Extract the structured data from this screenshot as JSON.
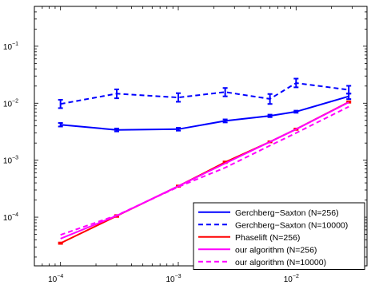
{
  "chart_data": {
    "type": "line",
    "x_scale": "log",
    "y_scale": "log",
    "xlim": [
      6e-05,
      0.04
    ],
    "ylim": [
      1.4e-05,
      0.5
    ],
    "x_ticks": [
      {
        "value": 0.0001,
        "base": "10",
        "exp": "−4"
      },
      {
        "value": 0.001,
        "base": "10",
        "exp": "−3"
      },
      {
        "value": 0.01,
        "base": "10",
        "exp": "−2"
      }
    ],
    "y_ticks": [
      {
        "value": 0.0001,
        "base": "10",
        "exp": "−4"
      },
      {
        "value": 0.001,
        "base": "10",
        "exp": "−3"
      },
      {
        "value": 0.01,
        "base": "10",
        "exp": "−2"
      },
      {
        "value": 0.1,
        "base": "10",
        "exp": "−1"
      }
    ],
    "grid": false,
    "legend_position": "bottom-right",
    "series": [
      {
        "name": "Gerchberg−Saxton (N=256)",
        "color": "#0000ff",
        "dash": "solid",
        "x": [
          0.0001,
          0.0003,
          0.001,
          0.0025,
          0.006,
          0.01,
          0.028
        ],
        "y": [
          0.0042,
          0.0034,
          0.0035,
          0.0049,
          0.006,
          0.0071,
          0.0132
        ],
        "err_low": [
          0.0039,
          0.0032,
          0.0033,
          0.0046,
          0.0057,
          0.0068,
          0.0118
        ],
        "err_high": [
          0.0045,
          0.0036,
          0.0037,
          0.0052,
          0.0063,
          0.0074,
          0.0148
        ]
      },
      {
        "name": "Gerchberg−Saxton (N=10000)",
        "color": "#0000ff",
        "dash": "dashed",
        "x": [
          0.0001,
          0.0003,
          0.001,
          0.0025,
          0.006,
          0.01,
          0.028
        ],
        "y": [
          0.0097,
          0.0147,
          0.0126,
          0.0157,
          0.0119,
          0.0226,
          0.0172
        ],
        "err_low": [
          0.0082,
          0.0122,
          0.0106,
          0.0132,
          0.0097,
          0.019,
          0.0147
        ],
        "err_high": [
          0.0115,
          0.0175,
          0.015,
          0.0185,
          0.0145,
          0.027,
          0.0202
        ]
      },
      {
        "name": "Phaselift (N=256)",
        "color": "#ff0000",
        "dash": "solid",
        "x": [
          0.0001,
          0.0003,
          0.001,
          0.0025,
          0.006,
          0.01,
          0.028
        ],
        "y": [
          3.5e-05,
          0.000105,
          0.00035,
          0.00092,
          0.0021,
          0.0035,
          0.0105
        ],
        "err_low": [
          3.4e-05,
          0.000101,
          0.00034,
          0.00089,
          0.00205,
          0.0034,
          0.0102
        ],
        "err_high": [
          3.6e-05,
          0.000109,
          0.00036,
          0.00095,
          0.00215,
          0.0036,
          0.0108
        ]
      },
      {
        "name": "our algorithm (N=256)",
        "color": "#ff00ff",
        "dash": "solid",
        "x": [
          0.0001,
          0.0003,
          0.001,
          0.0025,
          0.006,
          0.01,
          0.028
        ],
        "y": [
          4.2e-05,
          0.000106,
          0.00035,
          0.00088,
          0.0021,
          0.0035,
          0.0104
        ]
      },
      {
        "name": "our algorithm (N=10000)",
        "color": "#ff00ff",
        "dash": "dashed",
        "x": [
          0.0001,
          0.0003,
          0.001,
          0.0025,
          0.006,
          0.01,
          0.028
        ],
        "y": [
          4.9e-05,
          0.000108,
          0.00034,
          0.00074,
          0.0018,
          0.003,
          0.0087
        ]
      }
    ]
  }
}
